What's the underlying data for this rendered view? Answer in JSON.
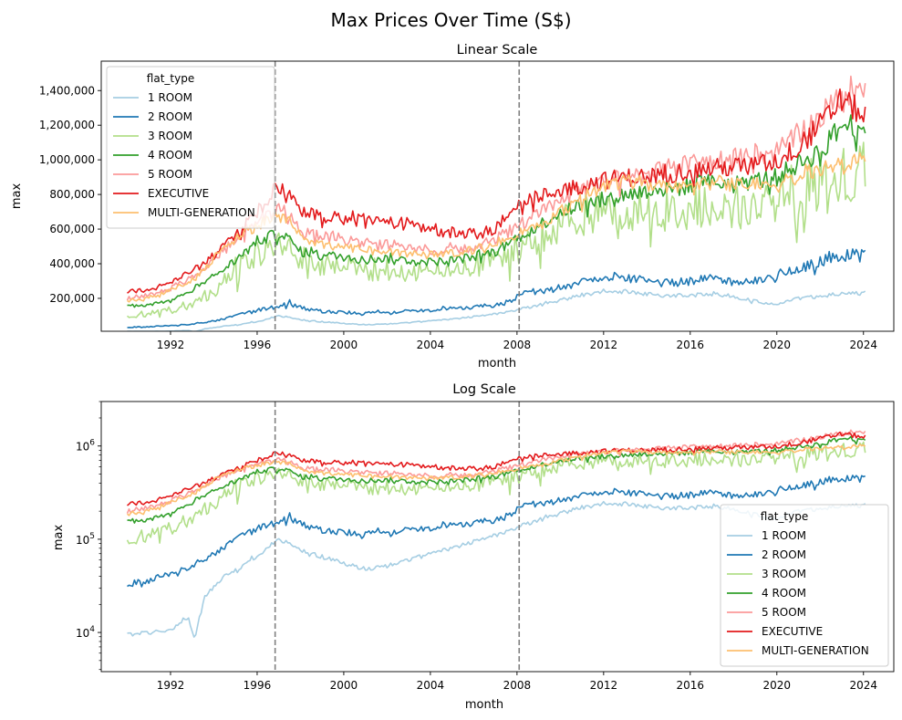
{
  "figure": {
    "suptitle": "Max Prices Over Time (S$)"
  },
  "chart_data": [
    {
      "type": "line",
      "title": "Linear Scale",
      "xlabel": "month",
      "ylabel": "max",
      "yscale": "linear",
      "xlim": [
        1988.8,
        2025.4
      ],
      "ylim": [
        10000,
        1570000
      ],
      "xticks": [
        "1992",
        "1996",
        "2000",
        "2004",
        "2008",
        "2012",
        "2016",
        "2020",
        "2024"
      ],
      "yticks": [
        "200,000",
        "400,000",
        "600,000",
        "800,000",
        "1,000,000",
        "1,200,000",
        "1,400,000"
      ],
      "vlines": [
        1996.83,
        2008.1
      ],
      "legend": {
        "title": "flat_type",
        "position": "top-left"
      },
      "grid": false
    },
    {
      "type": "line",
      "title": "Log Scale",
      "xlabel": "month",
      "ylabel": "max",
      "yscale": "log",
      "xlim": [
        1988.8,
        2025.4
      ],
      "ylim": [
        3800,
        3000000
      ],
      "xticks": [
        "1992",
        "1996",
        "2000",
        "2004",
        "2008",
        "2012",
        "2016",
        "2020",
        "2024"
      ],
      "yticks": [
        {
          "base": "10",
          "exp": "4"
        },
        {
          "base": "10",
          "exp": "5"
        },
        {
          "base": "10",
          "exp": "6"
        }
      ],
      "vlines": [
        1996.83,
        2008.1
      ],
      "legend": {
        "title": "flat_type",
        "position": "lower-right"
      },
      "grid": false
    }
  ],
  "series": [
    {
      "name": "1 ROOM",
      "color": "#a6cee3",
      "noise": 0.05,
      "points": [
        [
          1990,
          9500
        ],
        [
          1991,
          10000
        ],
        [
          1992,
          10500
        ],
        [
          1992.8,
          15000
        ],
        [
          1993.1,
          8500
        ],
        [
          1993.6,
          25000
        ],
        [
          1994.5,
          40000
        ],
        [
          1995.5,
          55000
        ],
        [
          1996.5,
          80000
        ],
        [
          1996.9,
          100000
        ],
        [
          1997.3,
          95000
        ],
        [
          1998,
          75000
        ],
        [
          1999,
          65000
        ],
        [
          2000,
          55000
        ],
        [
          2001,
          48000
        ],
        [
          2002,
          52000
        ],
        [
          2003,
          60000
        ],
        [
          2004,
          70000
        ],
        [
          2005,
          80000
        ],
        [
          2006,
          95000
        ],
        [
          2007,
          110000
        ],
        [
          2008,
          135000
        ],
        [
          2009,
          160000
        ],
        [
          2010,
          190000
        ],
        [
          2011,
          220000
        ],
        [
          2012,
          235000
        ],
        [
          2013,
          240000
        ],
        [
          2014,
          225000
        ],
        [
          2015,
          215000
        ],
        [
          2016,
          220000
        ],
        [
          2017,
          225000
        ],
        [
          2018,
          210000
        ],
        [
          2019,
          185000
        ],
        [
          2020,
          165000
        ],
        [
          2021,
          200000
        ],
        [
          2022,
          215000
        ],
        [
          2023,
          225000
        ],
        [
          2024.1,
          230000
        ]
      ]
    },
    {
      "name": "2 ROOM",
      "color": "#1f78b4",
      "noise": 0.08,
      "points": [
        [
          1990,
          33000
        ],
        [
          1991,
          36000
        ],
        [
          1992,
          42000
        ],
        [
          1993,
          52000
        ],
        [
          1994,
          70000
        ],
        [
          1995,
          100000
        ],
        [
          1996,
          130000
        ],
        [
          1996.9,
          150000
        ],
        [
          1997.5,
          170000
        ],
        [
          1998.2,
          140000
        ],
        [
          1999,
          125000
        ],
        [
          2000,
          120000
        ],
        [
          2001,
          115000
        ],
        [
          2002,
          120000
        ],
        [
          2003,
          125000
        ],
        [
          2004,
          130000
        ],
        [
          2005,
          140000
        ],
        [
          2006,
          150000
        ],
        [
          2007,
          160000
        ],
        [
          2007.9,
          190000
        ],
        [
          2008.2,
          240000
        ],
        [
          2009,
          240000
        ],
        [
          2010,
          260000
        ],
        [
          2011,
          300000
        ],
        [
          2012,
          330000
        ],
        [
          2013,
          320000
        ],
        [
          2014,
          300000
        ],
        [
          2015,
          290000
        ],
        [
          2016,
          300000
        ],
        [
          2017,
          320000
        ],
        [
          2018,
          300000
        ],
        [
          2019,
          300000
        ],
        [
          2020,
          330000
        ],
        [
          2021,
          370000
        ],
        [
          2022,
          410000
        ],
        [
          2023,
          450000
        ],
        [
          2024.1,
          450000
        ]
      ]
    },
    {
      "name": "3 ROOM",
      "color": "#b2df8a",
      "noise": 0.18,
      "points": [
        [
          1990,
          100000
        ],
        [
          1991,
          110000
        ],
        [
          1992,
          130000
        ],
        [
          1993,
          170000
        ],
        [
          1994,
          250000
        ],
        [
          1995,
          350000
        ],
        [
          1996,
          450000
        ],
        [
          1996.9,
          500000
        ],
        [
          1997.5,
          480000
        ],
        [
          1998,
          430000
        ],
        [
          1999,
          400000
        ],
        [
          2000,
          380000
        ],
        [
          2001,
          370000
        ],
        [
          2002,
          360000
        ],
        [
          2003,
          350000
        ],
        [
          2004,
          350000
        ],
        [
          2005,
          370000
        ],
        [
          2006,
          380000
        ],
        [
          2007,
          420000
        ],
        [
          2008,
          480000
        ],
        [
          2009,
          550000
        ],
        [
          2010,
          620000
        ],
        [
          2011,
          680000
        ],
        [
          2012,
          700000
        ],
        [
          2013,
          700000
        ],
        [
          2014,
          690000
        ],
        [
          2015,
          700000
        ],
        [
          2016,
          720000
        ],
        [
          2017,
          730000
        ],
        [
          2018,
          720000
        ],
        [
          2019,
          720000
        ],
        [
          2020,
          740000
        ],
        [
          2021,
          800000
        ],
        [
          2022,
          850000
        ],
        [
          2023,
          900000
        ],
        [
          2024.1,
          950000
        ]
      ]
    },
    {
      "name": "4 ROOM",
      "color": "#33a02c",
      "noise": 0.06,
      "points": [
        [
          1990,
          155000
        ],
        [
          1991,
          165000
        ],
        [
          1992,
          190000
        ],
        [
          1993,
          250000
        ],
        [
          1994,
          330000
        ],
        [
          1995,
          420000
        ],
        [
          1996,
          530000
        ],
        [
          1996.9,
          570000
        ],
        [
          1997.5,
          540000
        ],
        [
          1998,
          470000
        ],
        [
          1999,
          450000
        ],
        [
          2000,
          440000
        ],
        [
          2001,
          430000
        ],
        [
          2002,
          430000
        ],
        [
          2003,
          420000
        ],
        [
          2004,
          410000
        ],
        [
          2005,
          420000
        ],
        [
          2006,
          440000
        ],
        [
          2007,
          470000
        ],
        [
          2008,
          550000
        ],
        [
          2009,
          620000
        ],
        [
          2010,
          700000
        ],
        [
          2011,
          740000
        ],
        [
          2012,
          770000
        ],
        [
          2013,
          800000
        ],
        [
          2014,
          820000
        ],
        [
          2015,
          830000
        ],
        [
          2016,
          850000
        ],
        [
          2017,
          870000
        ],
        [
          2018,
          860000
        ],
        [
          2019,
          880000
        ],
        [
          2020,
          900000
        ],
        [
          2021,
          980000
        ],
        [
          2022,
          1050000
        ],
        [
          2023,
          1200000
        ],
        [
          2024.1,
          1200000
        ]
      ]
    },
    {
      "name": "5 ROOM",
      "color": "#fb9a99",
      "noise": 0.06,
      "points": [
        [
          1990,
          200000
        ],
        [
          1991,
          220000
        ],
        [
          1992,
          260000
        ],
        [
          1993,
          320000
        ],
        [
          1994,
          420000
        ],
        [
          1995,
          550000
        ],
        [
          1996,
          650000
        ],
        [
          1996.9,
          720000
        ],
        [
          1997.5,
          680000
        ],
        [
          1998,
          600000
        ],
        [
          1999,
          560000
        ],
        [
          2000,
          540000
        ],
        [
          2001,
          520000
        ],
        [
          2002,
          510000
        ],
        [
          2003,
          500000
        ],
        [
          2004,
          480000
        ],
        [
          2005,
          480000
        ],
        [
          2006,
          500000
        ],
        [
          2007,
          540000
        ],
        [
          2008,
          620000
        ],
        [
          2009,
          700000
        ],
        [
          2010,
          780000
        ],
        [
          2011,
          830000
        ],
        [
          2012,
          870000
        ],
        [
          2013,
          900000
        ],
        [
          2014,
          920000
        ],
        [
          2015,
          950000
        ],
        [
          2016,
          980000
        ],
        [
          2017,
          1000000
        ],
        [
          2018,
          1000000
        ],
        [
          2019,
          1020000
        ],
        [
          2020,
          1050000
        ],
        [
          2021,
          1150000
        ],
        [
          2022,
          1250000
        ],
        [
          2023,
          1380000
        ],
        [
          2024.1,
          1450000
        ]
      ]
    },
    {
      "name": "EXECUTIVE",
      "color": "#e31a1c",
      "noise": 0.06,
      "points": [
        [
          1990,
          235000
        ],
        [
          1991,
          250000
        ],
        [
          1992,
          290000
        ],
        [
          1993,
          360000
        ],
        [
          1994,
          450000
        ],
        [
          1995,
          560000
        ],
        [
          1996,
          700000
        ],
        [
          1996.9,
          850000
        ],
        [
          1997.5,
          780000
        ],
        [
          1998,
          720000
        ],
        [
          1999,
          680000
        ],
        [
          2000,
          660000
        ],
        [
          2001,
          650000
        ],
        [
          2002,
          640000
        ],
        [
          2003,
          630000
        ],
        [
          2004,
          600000
        ],
        [
          2005,
          580000
        ],
        [
          2006,
          570000
        ],
        [
          2007,
          600000
        ],
        [
          2008,
          750000
        ],
        [
          2009,
          780000
        ],
        [
          2010,
          830000
        ],
        [
          2011,
          850000
        ],
        [
          2012,
          880000
        ],
        [
          2013,
          900000
        ],
        [
          2014,
          900000
        ],
        [
          2015,
          920000
        ],
        [
          2016,
          940000
        ],
        [
          2017,
          950000
        ],
        [
          2018,
          960000
        ],
        [
          2019,
          970000
        ],
        [
          2020,
          990000
        ],
        [
          2021,
          1080000
        ],
        [
          2022,
          1200000
        ],
        [
          2023,
          1350000
        ],
        [
          2024.1,
          1250000
        ]
      ]
    },
    {
      "name": "MULTI-GENERATION",
      "color": "#fdbf6f",
      "noise": 0.05,
      "points": [
        [
          1990,
          185000
        ],
        [
          1991,
          205000
        ],
        [
          1992,
          245000
        ],
        [
          1993,
          310000
        ],
        [
          1994,
          430000
        ],
        [
          1995,
          550000
        ],
        [
          1996,
          620000
        ],
        [
          1996.9,
          680000
        ],
        [
          1997.5,
          640000
        ],
        [
          1998,
          560000
        ],
        [
          1999,
          510000
        ],
        [
          2000,
          490000
        ],
        [
          2001,
          480000
        ],
        [
          2002,
          470000
        ],
        [
          2003,
          460000
        ],
        [
          2004,
          450000
        ],
        [
          2005,
          460000
        ],
        [
          2006,
          480000
        ],
        [
          2007,
          520000
        ],
        [
          2008,
          570000
        ],
        [
          2009,
          620000
        ],
        [
          2010,
          700000
        ],
        [
          2011,
          780000
        ],
        [
          2012,
          850000
        ],
        [
          2013,
          880000
        ],
        [
          2014,
          860000
        ],
        [
          2015,
          850000
        ],
        [
          2016,
          860000
        ],
        [
          2017,
          870000
        ],
        [
          2018,
          860000
        ],
        [
          2019,
          860000
        ],
        [
          2020,
          880000
        ],
        [
          2021,
          920000
        ],
        [
          2022,
          950000
        ],
        [
          2023,
          980000
        ],
        [
          2024.1,
          1000000
        ]
      ]
    }
  ]
}
